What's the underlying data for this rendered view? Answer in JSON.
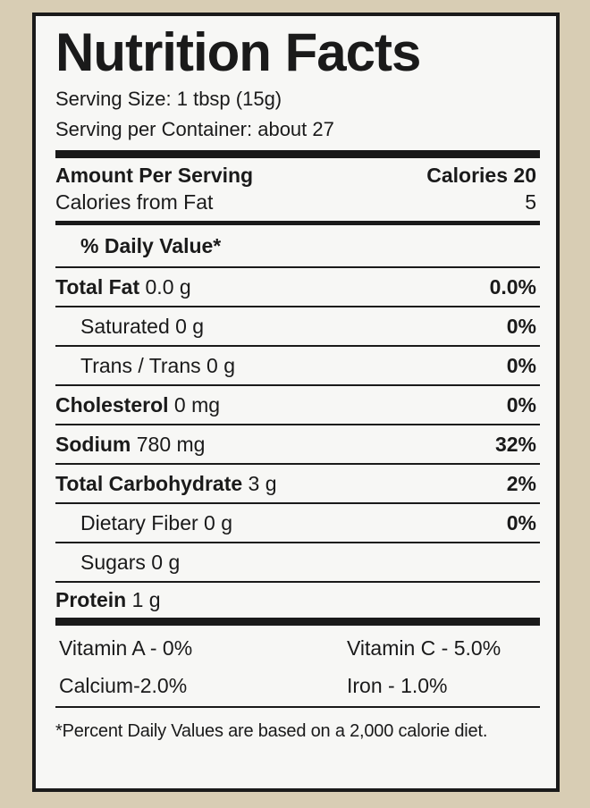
{
  "title": "Nutrition Facts",
  "serving_size": "Serving Size: 1 tbsp (15g)",
  "servings_per_container": "Serving per Container: about 27",
  "amount_per_serving": "Amount Per Serving",
  "calories": "Calories 20",
  "calories_from_fat_label": "Calories from Fat",
  "calories_from_fat_value": "5",
  "daily_value_header": "% Daily Value*",
  "nutrients": [
    {
      "name": "Total Fat",
      "amount": " 0.0 g",
      "dv": "0.0%"
    },
    {
      "name": "Saturated 0 g",
      "amount": "",
      "dv": "0%"
    },
    {
      "name": "Trans / Trans 0 g",
      "amount": "",
      "dv": "0%"
    },
    {
      "name": "Cholesterol",
      "amount": " 0 mg",
      "dv": "0%"
    },
    {
      "name": "Sodium",
      "amount": " 780 mg",
      "dv": "32%"
    },
    {
      "name": "Total Carbohydrate",
      "amount": " 3 g",
      "dv": "2%"
    },
    {
      "name": "Dietary Fiber 0 g",
      "amount": "",
      "dv": "0%"
    },
    {
      "name": "Sugars 0 g",
      "amount": "",
      "dv": ""
    },
    {
      "name": "Protein",
      "amount": " 1 g",
      "dv": ""
    }
  ],
  "vitamins": {
    "vitamin_a": "Vitamin A - 0%",
    "vitamin_c": "Vitamin C - 5.0%",
    "calcium": "Calcium-2.0%",
    "iron": "Iron - 1.0%"
  },
  "footnote": "*Percent Daily Values are based on a 2,000 calorie diet."
}
